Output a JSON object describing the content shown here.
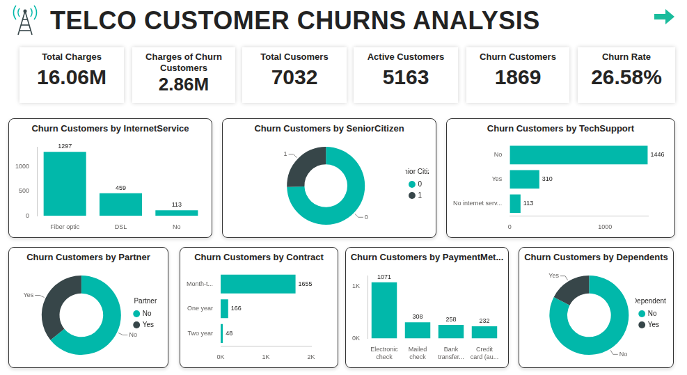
{
  "title": "TELCO CUSTOMER CHURNS ANALYSIS",
  "kpis": [
    {
      "label": "Total Charges",
      "value": "16.06M"
    },
    {
      "label": "Charges of Churn Customers",
      "value": "2.86M"
    },
    {
      "label": "Total Cusomers",
      "value": "7032"
    },
    {
      "label": "Active Customers",
      "value": "5163"
    },
    {
      "label": "Churn Customers",
      "value": "1869"
    },
    {
      "label": "Churn Rate",
      "value": "26.58%"
    }
  ],
  "chart_data": [
    {
      "type": "bar",
      "title": "Churn Customers by InternetService",
      "categories": [
        "Fiber optic",
        "DSL",
        "No"
      ],
      "values": [
        1297,
        459,
        113
      ],
      "color": "#01B8AA",
      "ylim": [
        0,
        1400
      ],
      "yticks": [
        0,
        500,
        1000
      ],
      "grid": false,
      "data_labels": true
    },
    {
      "type": "doughnut",
      "title": "Churn Customers by SeniorCitizen",
      "categories": [
        "0",
        "1"
      ],
      "values": [
        1393,
        476
      ],
      "colors": [
        "#01B8AA",
        "#374649"
      ],
      "legend": "right",
      "legend_title": "Senior Citizen"
    },
    {
      "type": "bar",
      "title": "Churn Customers by TechSupport",
      "orientation": "horizontal",
      "categories": [
        "No",
        "Yes",
        "No internet serv..."
      ],
      "values": [
        1446,
        310,
        113
      ],
      "color": "#01B8AA",
      "xlim": [
        0,
        1450
      ],
      "xticks": [
        0,
        1000
      ],
      "grid": false,
      "data_labels": true
    },
    {
      "type": "doughnut",
      "title": "Churn Customers by Partner",
      "categories": [
        "No",
        "Yes"
      ],
      "values": [
        1200,
        669
      ],
      "colors": [
        "#01B8AA",
        "#374649"
      ],
      "legend": "right",
      "legend_title": "Partner"
    },
    {
      "type": "bar",
      "title": "Churn Customers by Contract",
      "orientation": "horizontal",
      "categories": [
        "Month-t...",
        "One year",
        "Two year"
      ],
      "values": [
        1655,
        166,
        48
      ],
      "color": "#01B8AA",
      "xlim": [
        0,
        2000
      ],
      "xticks": [
        {
          "value": 0,
          "label": "0K"
        },
        {
          "value": 1000,
          "label": "1K"
        },
        {
          "value": 2000,
          "label": "2K"
        }
      ],
      "grid": false,
      "data_labels": true
    },
    {
      "type": "bar",
      "title": "Churn Customers by PaymentMet...",
      "categories": [
        "Electronic check",
        "Mailed check",
        "Bank transfer...",
        "Credit card (au..."
      ],
      "values": [
        1071,
        308,
        258,
        232
      ],
      "color": "#01B8AA",
      "ylim": [
        0,
        1200
      ],
      "yticks": [
        {
          "value": 0,
          "label": "0K"
        },
        {
          "value": 1000,
          "label": "1K"
        }
      ],
      "grid": false,
      "data_labels": true
    },
    {
      "type": "doughnut",
      "title": "Churn Customers by Dependents",
      "categories": [
        "No",
        "Yes"
      ],
      "values": [
        1543,
        326
      ],
      "colors": [
        "#01B8AA",
        "#374649"
      ],
      "legend": "right",
      "legend_title": "Dependents"
    }
  ]
}
